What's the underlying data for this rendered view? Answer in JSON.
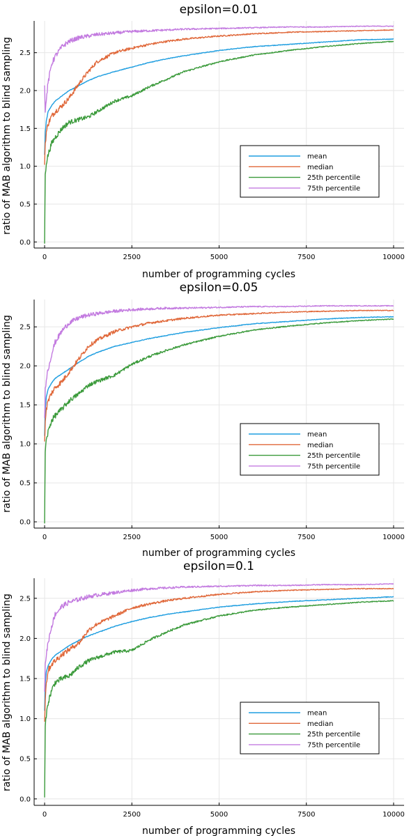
{
  "chart_data": [
    {
      "type": "line",
      "title": "epsilon=0.01",
      "xlabel": "number of programming cycles",
      "ylabel": "ratio of MAB algorithm to blind sampling",
      "xlim": [
        -300,
        10300
      ],
      "ylim": [
        -0.08,
        2.92
      ],
      "xticks": [
        "0",
        "2500",
        "5000",
        "7500",
        "10000"
      ],
      "yticks": [
        "0.0",
        "0.5",
        "1.0",
        "1.5",
        "2.0",
        "2.5"
      ],
      "grid": true,
      "legend": "right",
      "x": [
        0,
        20,
        50,
        100,
        200,
        300,
        500,
        700,
        1000,
        1250,
        1500,
        2000,
        2500,
        3000,
        3500,
        4000,
        5000,
        6000,
        7000,
        8000,
        9000,
        10000
      ],
      "series": [
        {
          "name": "mean",
          "color": "#1f9ee0",
          "values": [
            1.15,
            1.45,
            1.6,
            1.72,
            1.8,
            1.86,
            1.93,
            2.0,
            2.07,
            2.13,
            2.18,
            2.25,
            2.31,
            2.37,
            2.42,
            2.46,
            2.53,
            2.58,
            2.61,
            2.64,
            2.67,
            2.68
          ]
        },
        {
          "name": "median",
          "color": "#e0683a",
          "values": [
            1.05,
            1.3,
            1.45,
            1.56,
            1.66,
            1.72,
            1.8,
            1.9,
            2.1,
            2.25,
            2.38,
            2.5,
            2.56,
            2.61,
            2.65,
            2.68,
            2.72,
            2.75,
            2.77,
            2.78,
            2.79,
            2.8
          ]
        },
        {
          "name": "25th percentile",
          "color": "#3a9a3a",
          "values": [
            0.0,
            0.9,
            1.05,
            1.15,
            1.3,
            1.38,
            1.5,
            1.58,
            1.62,
            1.65,
            1.72,
            1.86,
            1.93,
            2.05,
            2.15,
            2.25,
            2.38,
            2.47,
            2.53,
            2.58,
            2.62,
            2.65
          ]
        },
        {
          "name": "75th percentile",
          "color": "#c37be0",
          "values": [
            2.1,
            1.7,
            1.9,
            2.1,
            2.35,
            2.45,
            2.58,
            2.65,
            2.7,
            2.72,
            2.74,
            2.76,
            2.78,
            2.79,
            2.8,
            2.81,
            2.82,
            2.83,
            2.84,
            2.84,
            2.85,
            2.85
          ]
        }
      ]
    },
    {
      "type": "line",
      "title": "epsilon=0.05",
      "xlabel": "number of programming cycles",
      "ylabel": "ratio of MAB algorithm to blind sampling",
      "xlim": [
        -300,
        10300
      ],
      "ylim": [
        -0.08,
        2.85
      ],
      "xticks": [
        "0",
        "2500",
        "5000",
        "7500",
        "10000"
      ],
      "yticks": [
        "0.0",
        "0.5",
        "1.0",
        "1.5",
        "2.0",
        "2.5"
      ],
      "grid": true,
      "legend": "right",
      "x": [
        0,
        20,
        50,
        100,
        200,
        300,
        500,
        700,
        1000,
        1250,
        1500,
        2000,
        2500,
        3000,
        3500,
        4000,
        5000,
        6000,
        7000,
        8000,
        9000,
        10000
      ],
      "series": [
        {
          "name": "mean",
          "color": "#1f9ee0",
          "values": [
            1.1,
            1.45,
            1.6,
            1.7,
            1.78,
            1.84,
            1.9,
            1.96,
            2.05,
            2.12,
            2.17,
            2.25,
            2.3,
            2.35,
            2.39,
            2.43,
            2.49,
            2.54,
            2.57,
            2.6,
            2.62,
            2.63
          ]
        },
        {
          "name": "median",
          "color": "#e0683a",
          "values": [
            1.0,
            1.3,
            1.45,
            1.55,
            1.65,
            1.72,
            1.8,
            1.92,
            2.1,
            2.25,
            2.33,
            2.44,
            2.5,
            2.55,
            2.58,
            2.61,
            2.65,
            2.67,
            2.69,
            2.7,
            2.71,
            2.71
          ]
        },
        {
          "name": "25th percentile",
          "color": "#3a9a3a",
          "values": [
            0.0,
            0.9,
            1.05,
            1.15,
            1.3,
            1.36,
            1.45,
            1.55,
            1.65,
            1.75,
            1.8,
            1.88,
            2.02,
            2.12,
            2.2,
            2.27,
            2.38,
            2.46,
            2.51,
            2.55,
            2.58,
            2.6
          ]
        },
        {
          "name": "75th percentile",
          "color": "#c37be0",
          "values": [
            1.3,
            1.7,
            1.85,
            1.95,
            2.15,
            2.3,
            2.45,
            2.55,
            2.62,
            2.65,
            2.67,
            2.7,
            2.72,
            2.73,
            2.74,
            2.74,
            2.75,
            2.76,
            2.76,
            2.77,
            2.77,
            2.77
          ]
        }
      ]
    },
    {
      "type": "line",
      "title": "epsilon=0.1",
      "xlabel": "number of programming cycles",
      "ylabel": "ratio of MAB algorithm to blind sampling",
      "xlim": [
        -300,
        10300
      ],
      "ylim": [
        -0.08,
        2.75
      ],
      "xticks": [
        "0",
        "2500",
        "5000",
        "7500",
        "10000"
      ],
      "yticks": [
        "0.0",
        "0.5",
        "1.0",
        "1.5",
        "2.0",
        "2.5"
      ],
      "grid": true,
      "legend": "right",
      "x": [
        0,
        20,
        50,
        100,
        200,
        300,
        500,
        700,
        1000,
        1250,
        1500,
        2000,
        2500,
        3000,
        3500,
        4000,
        5000,
        6000,
        7000,
        8000,
        9000,
        10000
      ],
      "series": [
        {
          "name": "mean",
          "color": "#1f9ee0",
          "values": [
            1.1,
            1.45,
            1.58,
            1.66,
            1.74,
            1.79,
            1.85,
            1.91,
            1.98,
            2.03,
            2.07,
            2.15,
            2.21,
            2.26,
            2.3,
            2.33,
            2.39,
            2.43,
            2.46,
            2.48,
            2.5,
            2.52
          ]
        },
        {
          "name": "median",
          "color": "#e0683a",
          "values": [
            0.95,
            1.25,
            1.45,
            1.6,
            1.68,
            1.72,
            1.8,
            1.86,
            1.95,
            2.1,
            2.18,
            2.28,
            2.38,
            2.43,
            2.47,
            2.5,
            2.55,
            2.58,
            2.6,
            2.61,
            2.62,
            2.62
          ]
        },
        {
          "name": "25th percentile",
          "color": "#3a9a3a",
          "values": [
            0.0,
            0.9,
            1.05,
            1.2,
            1.35,
            1.45,
            1.5,
            1.53,
            1.65,
            1.72,
            1.76,
            1.83,
            1.85,
            1.98,
            2.08,
            2.17,
            2.28,
            2.35,
            2.39,
            2.42,
            2.45,
            2.47
          ]
        },
        {
          "name": "75th percentile",
          "color": "#c37be0",
          "values": [
            1.3,
            1.7,
            1.8,
            1.95,
            2.15,
            2.3,
            2.4,
            2.45,
            2.49,
            2.52,
            2.54,
            2.57,
            2.6,
            2.62,
            2.63,
            2.64,
            2.65,
            2.66,
            2.66,
            2.67,
            2.67,
            2.68
          ]
        }
      ]
    }
  ]
}
